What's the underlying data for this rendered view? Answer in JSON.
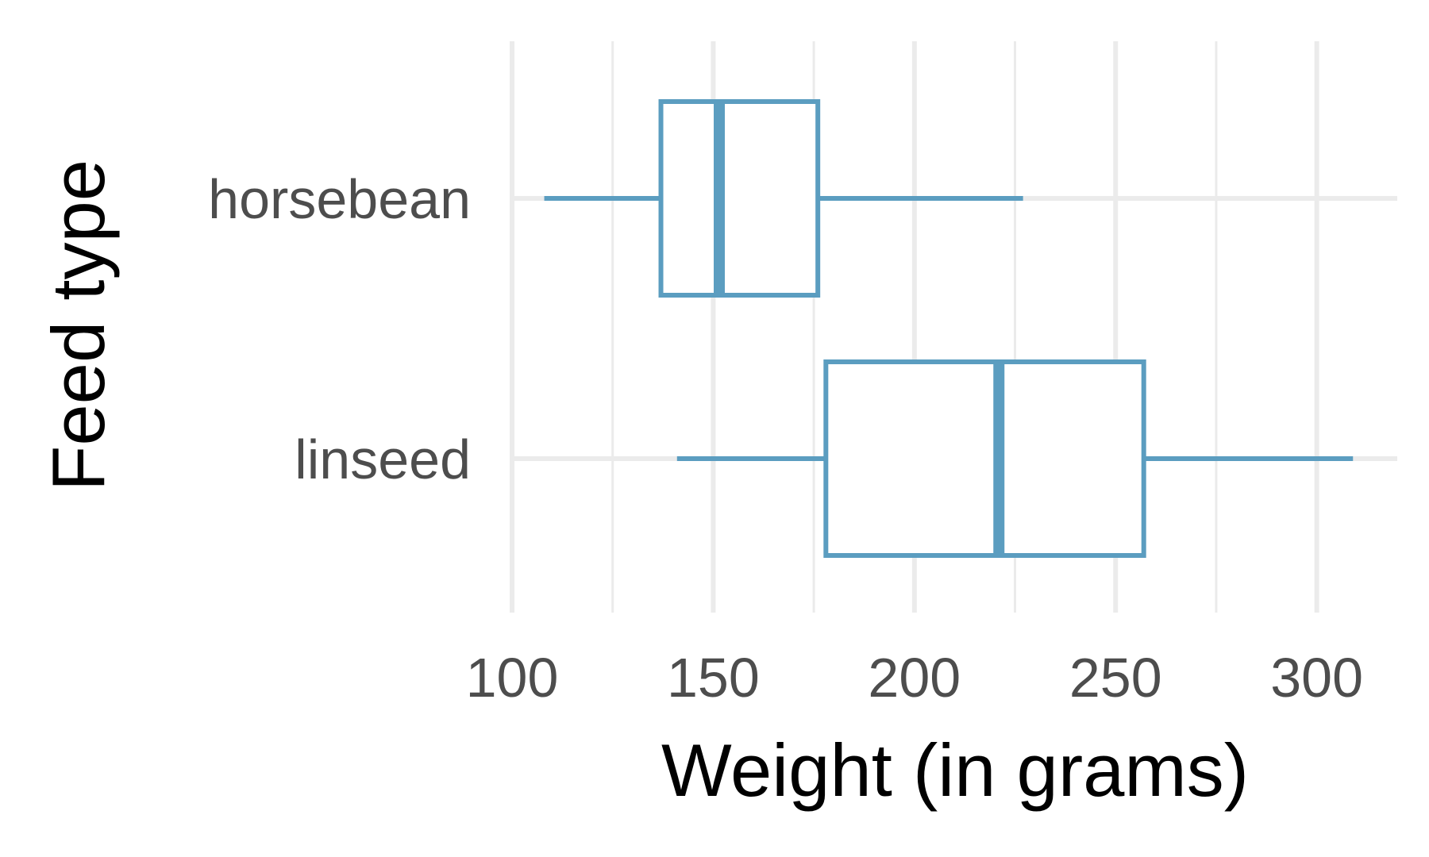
{
  "chart_data": {
    "type": "boxplot",
    "orientation": "horizontal",
    "title": "",
    "xlabel": "Weight (in grams)",
    "ylabel": "Feed type",
    "xlim": [
      100,
      320
    ],
    "x_ticks": [
      100,
      150,
      200,
      250,
      300
    ],
    "x_minor_ticks": [
      125,
      175,
      225,
      275
    ],
    "grid": true,
    "legend": "none",
    "colors": {
      "box": "#5b9dc0",
      "grid": "#ebebeb",
      "tick_label": "#4d4d4d",
      "axis_title": "#000000"
    },
    "categories": [
      "horsebean",
      "linseed"
    ],
    "boxes": [
      {
        "category": "horsebean",
        "whisker_low": 108,
        "q1": 137,
        "median": 151.5,
        "q3": 176,
        "whisker_high": 227
      },
      {
        "category": "linseed",
        "whisker_low": 141,
        "q1": 178,
        "median": 221,
        "q3": 257,
        "whisker_high": 309
      }
    ]
  }
}
